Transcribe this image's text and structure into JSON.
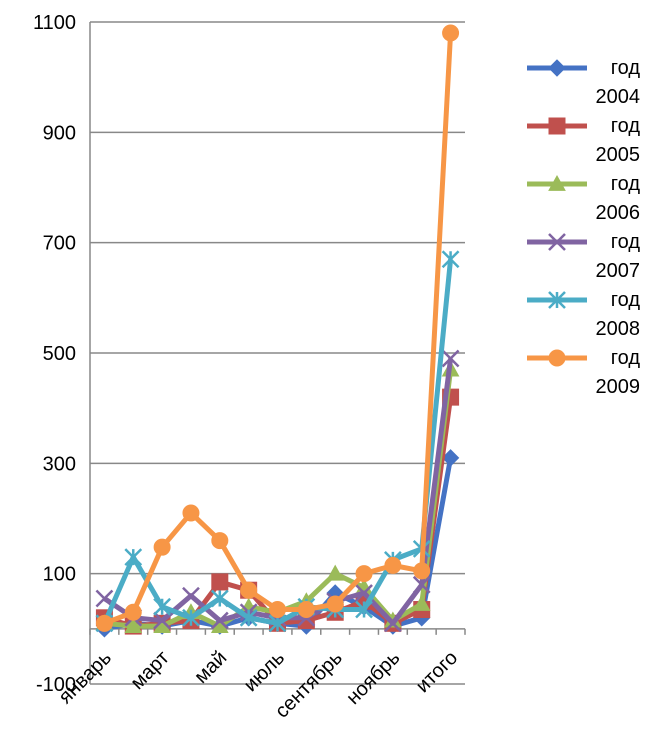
{
  "chart_data": {
    "type": "line",
    "categories": [
      "январь",
      null,
      "март",
      null,
      "май",
      null,
      "июль",
      null,
      "сентябрь",
      null,
      "ноябрь",
      null,
      "итого"
    ],
    "series": [
      {
        "name": "год 2004",
        "color": "#4472c4",
        "marker": "diamond",
        "values": [
          0,
          10,
          5,
          15,
          5,
          20,
          10,
          5,
          65,
          40,
          5,
          20,
          310
        ]
      },
      {
        "name": "год 2005",
        "color": "#c0504d",
        "marker": "square",
        "values": [
          20,
          5,
          10,
          15,
          85,
          70,
          10,
          15,
          30,
          50,
          10,
          35,
          420
        ]
      },
      {
        "name": "год 2006",
        "color": "#9bbb59",
        "marker": "triangle",
        "values": [
          10,
          5,
          5,
          30,
          5,
          40,
          30,
          50,
          100,
          75,
          15,
          45,
          470
        ]
      },
      {
        "name": "год 2007",
        "color": "#8064a2",
        "marker": "x",
        "values": [
          55,
          20,
          15,
          60,
          15,
          30,
          20,
          20,
          50,
          65,
          10,
          80,
          490
        ]
      },
      {
        "name": "год 2008",
        "color": "#4bacc6",
        "marker": "star",
        "values": [
          10,
          130,
          40,
          20,
          55,
          20,
          10,
          40,
          35,
          35,
          125,
          145,
          670
        ]
      },
      {
        "name": "год 2009",
        "color": "#f79646",
        "marker": "circle",
        "values": [
          10,
          30,
          148,
          210,
          160,
          70,
          35,
          35,
          45,
          100,
          115,
          105,
          1080
        ]
      }
    ],
    "ylim": [
      -100,
      1100
    ],
    "yticks": [
      -100,
      100,
      300,
      500,
      700,
      900,
      1100
    ],
    "grid": true,
    "legend": "right"
  }
}
